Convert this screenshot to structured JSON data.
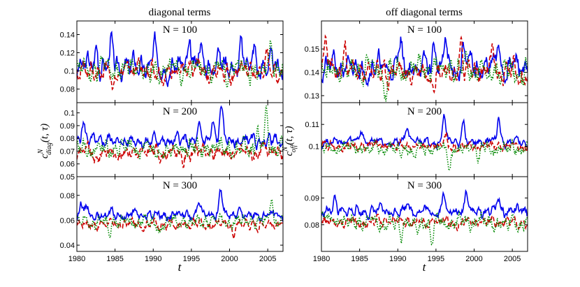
{
  "figure": {
    "columns": [
      {
        "title": "diagonal terms",
        "ylabel_main": "c",
        "ylabel_sup": "N",
        "ylabel_sub": "diag",
        "ylabel_args": "(t, τ)"
      },
      {
        "title": "off diagonal terms",
        "ylabel_main": "c",
        "ylabel_sup": "N",
        "ylabel_sub": "off",
        "ylabel_args": "(t, τ)"
      }
    ],
    "xlabel": "t"
  },
  "chart_data": [
    {
      "type": "line",
      "column": "diagonal terms",
      "panel_label": "N = 100",
      "xlim": [
        1980,
        2007
      ],
      "ylim": [
        0.065,
        0.155
      ],
      "xticks": [
        "1980",
        "1985",
        "1990",
        "1995",
        "2000",
        "2005"
      ],
      "yticks": [
        0.08,
        0.1,
        0.12,
        0.14
      ],
      "ytick_labels": [
        "0.08",
        "0.1",
        "0.12",
        "0.14"
      ],
      "series": [
        {
          "color": "#0000ee",
          "style": "solid",
          "base": 0.105,
          "amp": 0.012,
          "spikes": [
            [
              1982.6,
              0.022
            ],
            [
              1984.5,
              0.024
            ],
            [
              1990.2,
              0.024
            ],
            [
              1994.8,
              0.028
            ],
            [
              1996.1,
              0.024
            ],
            [
              1998.5,
              0.026
            ],
            [
              2001.5,
              0.024
            ],
            [
              2003.2,
              0.022
            ]
          ],
          "seed": 3
        },
        {
          "color": "#cc0000",
          "style": "dashed",
          "base": 0.1,
          "amp": 0.011,
          "spikes": [
            [
              1984.8,
              -0.018
            ],
            [
              1988.2,
              0.015
            ],
            [
              2005.0,
              0.012
            ]
          ],
          "seed": 7
        },
        {
          "color": "#008800",
          "style": "dotted",
          "base": 0.102,
          "amp": 0.012,
          "spikes": [
            [
              2005.4,
              0.032
            ],
            [
              1989.5,
              -0.016
            ]
          ],
          "seed": 11
        }
      ]
    },
    {
      "type": "line",
      "column": "diagonal terms",
      "panel_label": "N = 200",
      "xlim": [
        1980,
        2007
      ],
      "ylim": [
        0.05,
        0.108
      ],
      "xticks": [
        "1980",
        "1985",
        "1990",
        "1995",
        "2000",
        "2005"
      ],
      "yticks": [
        0.05,
        0.06,
        0.07,
        0.08,
        0.09,
        0.1
      ],
      "ytick_labels": [
        "0.05",
        "0.06",
        "0.07",
        "0.08",
        "0.09",
        "0.1"
      ],
      "series": [
        {
          "color": "#0000ee",
          "style": "solid",
          "base": 0.078,
          "amp": 0.005,
          "spikes": [
            [
              1980.8,
              0.015
            ],
            [
              1997.8,
              0.016
            ],
            [
              1998.9,
              0.028
            ],
            [
              1996.0,
              0.008
            ]
          ],
          "seed": 5
        },
        {
          "color": "#cc0000",
          "style": "dashed",
          "base": 0.069,
          "amp": 0.006,
          "spikes": [
            [
              1982.5,
              -0.007
            ],
            [
              1993.8,
              -0.008
            ]
          ],
          "seed": 9
        },
        {
          "color": "#008800",
          "style": "dotted",
          "base": 0.072,
          "amp": 0.007,
          "spikes": [
            [
              2004.8,
              0.026
            ],
            [
              2003.6,
              0.016
            ]
          ],
          "seed": 13
        }
      ]
    },
    {
      "type": "line",
      "column": "diagonal terms",
      "panel_label": "N = 300",
      "xlim": [
        1980,
        2007
      ],
      "ylim": [
        0.035,
        0.095
      ],
      "xticks": [
        "1980",
        "1985",
        "1990",
        "1995",
        "2000",
        "2005"
      ],
      "yticks": [
        0.04,
        0.06,
        0.08
      ],
      "ytick_labels": [
        "0.04",
        "0.06",
        "0.08"
      ],
      "series": [
        {
          "color": "#0000ee",
          "style": "solid",
          "base": 0.064,
          "amp": 0.004,
          "spikes": [
            [
              1980.5,
              0.01
            ],
            [
              1981.2,
              0.008
            ],
            [
              1996.0,
              0.014
            ],
            [
              1998.8,
              0.022
            ],
            [
              2001.3,
              0.01
            ]
          ],
          "seed": 15
        },
        {
          "color": "#cc0000",
          "style": "dashed",
          "base": 0.057,
          "amp": 0.004,
          "spikes": [
            [
              1993.0,
              -0.008
            ],
            [
              2000.5,
              -0.007
            ]
          ],
          "seed": 17
        },
        {
          "color": "#008800",
          "style": "dotted",
          "base": 0.059,
          "amp": 0.005,
          "spikes": [
            [
              2005.5,
              0.02
            ],
            [
              1984.2,
              -0.012
            ],
            [
              1990.8,
              -0.01
            ]
          ],
          "seed": 19
        }
      ]
    },
    {
      "type": "line",
      "column": "off diagonal terms",
      "panel_label": "N = 100",
      "xlim": [
        1980,
        2007
      ],
      "ylim": [
        0.127,
        0.162
      ],
      "xticks": [
        "1980",
        "1985",
        "1990",
        "1995",
        "2000",
        "2005"
      ],
      "yticks": [
        0.13,
        0.14,
        0.15
      ],
      "ytick_labels": [
        "0.13",
        "0.14",
        "0.15"
      ],
      "series": [
        {
          "color": "#0000ee",
          "style": "solid",
          "base": 0.142,
          "amp": 0.005,
          "spikes": [
            [
              1990.3,
              0.012
            ],
            [
              1994.8,
              0.012
            ],
            [
              1996.2,
              0.01
            ],
            [
              1998.6,
              0.01
            ],
            [
              2003.2,
              0.01
            ]
          ],
          "seed": 21
        },
        {
          "color": "#cc0000",
          "style": "dashed",
          "base": 0.14,
          "amp": 0.005,
          "spikes": [
            [
              1980.6,
              0.014
            ],
            [
              1983.0,
              0.012
            ],
            [
              1998.3,
              0.012
            ],
            [
              2002.5,
              0.01
            ]
          ],
          "seed": 23
        },
        {
          "color": "#008800",
          "style": "dotted",
          "base": 0.141,
          "amp": 0.005,
          "spikes": [
            [
              1988.4,
              -0.008
            ],
            [
              2001.8,
              -0.006
            ]
          ],
          "seed": 25
        }
      ]
    },
    {
      "type": "line",
      "column": "off diagonal terms",
      "panel_label": "N = 200",
      "xlim": [
        1980,
        2007
      ],
      "ylim": [
        0.086,
        0.12
      ],
      "xticks": [
        "1980",
        "1985",
        "1990",
        "1995",
        "2000",
        "2005"
      ],
      "yticks": [
        0.1,
        0.11
      ],
      "ytick_labels": [
        "0.1",
        "0.11"
      ],
      "series": [
        {
          "color": "#0000ee",
          "style": "solid",
          "base": 0.102,
          "amp": 0.002,
          "spikes": [
            [
              1985.2,
              0.005
            ],
            [
              1991.2,
              0.008
            ],
            [
              1996.1,
              0.012
            ],
            [
              1998.6,
              0.008
            ],
            [
              2003.2,
              0.011
            ]
          ],
          "seed": 27
        },
        {
          "color": "#cc0000",
          "style": "dashed",
          "base": 0.1,
          "amp": 0.002,
          "spikes": [
            [
              1996.3,
              0.004
            ]
          ],
          "seed": 29
        },
        {
          "color": "#008800",
          "style": "dotted",
          "base": 0.099,
          "amp": 0.003,
          "spikes": [
            [
              1992.2,
              -0.006
            ],
            [
              1996.8,
              -0.007
            ],
            [
              2000.5,
              -0.004
            ]
          ],
          "seed": 31
        }
      ]
    },
    {
      "type": "line",
      "column": "off diagonal terms",
      "panel_label": "N = 300",
      "xlim": [
        1980,
        2007
      ],
      "ylim": [
        0.07,
        0.098
      ],
      "xticks": [
        "1980",
        "1985",
        "1990",
        "1995",
        "2000",
        "2005"
      ],
      "yticks": [
        0.08,
        0.09
      ],
      "ytick_labels": [
        "0.08",
        "0.09"
      ],
      "series": [
        {
          "color": "#0000ee",
          "style": "solid",
          "base": 0.085,
          "amp": 0.002,
          "spikes": [
            [
              1981.8,
              0.004
            ],
            [
              1991.3,
              0.005
            ],
            [
              1996.0,
              0.006
            ],
            [
              1999.0,
              0.008
            ],
            [
              2003.2,
              0.006
            ]
          ],
          "seed": 33
        },
        {
          "color": "#cc0000",
          "style": "dashed",
          "base": 0.081,
          "amp": 0.002,
          "spikes": [],
          "seed": 35
        },
        {
          "color": "#008800",
          "style": "dotted",
          "base": 0.081,
          "amp": 0.003,
          "spikes": [
            [
              1990.4,
              -0.006
            ],
            [
              1992.8,
              -0.005
            ],
            [
              1994.5,
              -0.005
            ]
          ],
          "seed": 37
        }
      ]
    }
  ]
}
